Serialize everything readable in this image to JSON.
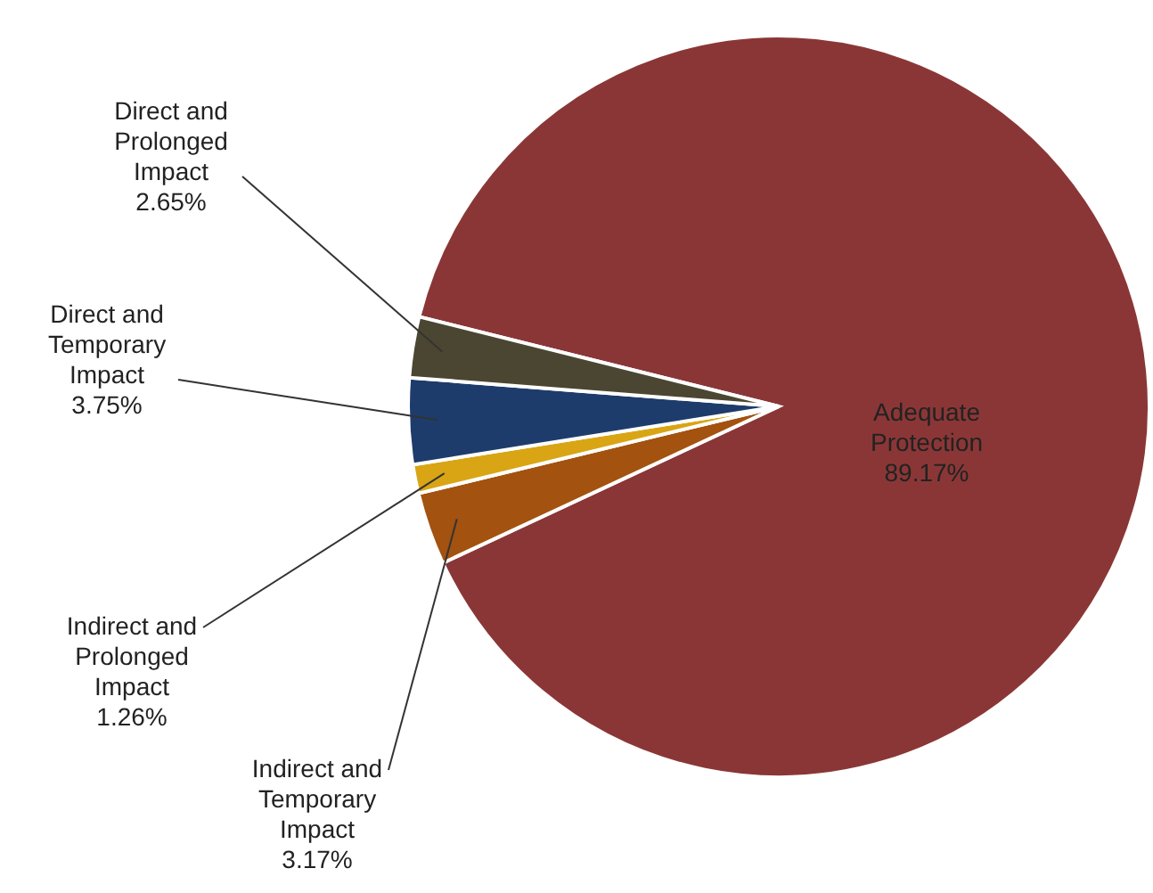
{
  "chart_data": {
    "type": "pie",
    "categories": [
      "Adequate Protection",
      "Indirect and Temporary Impact",
      "Indirect and Prolonged Impact",
      "Direct and Temporary Impact",
      "Direct and Prolonged Impact"
    ],
    "values": [
      89.17,
      3.17,
      1.26,
      3.75,
      2.65
    ],
    "colors": [
      "#8b3636",
      "#a3520f",
      "#d9a514",
      "#1e3c6b",
      "#4b4632"
    ],
    "value_labels": [
      "89.17%",
      "3.17%",
      "1.26%",
      "3.75%",
      "2.65%"
    ]
  }
}
